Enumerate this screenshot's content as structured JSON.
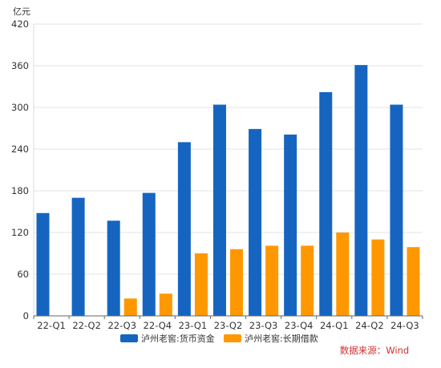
{
  "chart_data": {
    "type": "bar",
    "unit_label": "亿元",
    "categories": [
      "22-Q1",
      "22-Q2",
      "22-Q3",
      "22-Q4",
      "23-Q1",
      "23-Q2",
      "23-Q3",
      "23-Q4",
      "24-Q1",
      "24-Q2",
      "24-Q3"
    ],
    "series": [
      {
        "name": "泸州老窖:货币资金",
        "color": "#1565c0",
        "values": [
          148,
          170,
          137,
          177,
          250,
          304,
          269,
          261,
          322,
          361,
          304
        ]
      },
      {
        "name": "泸州老窖:长期借款",
        "color": "#ff9800",
        "values": [
          null,
          null,
          25,
          32,
          90,
          96,
          101,
          101,
          120,
          110,
          99
        ]
      }
    ],
    "ylim": [
      0,
      420
    ],
    "yticks": [
      0,
      60,
      120,
      180,
      240,
      300,
      360,
      420
    ],
    "grid": true,
    "legend_position": "bottom",
    "source": "数据来源：Wind",
    "source_color": "#d32f2f"
  }
}
